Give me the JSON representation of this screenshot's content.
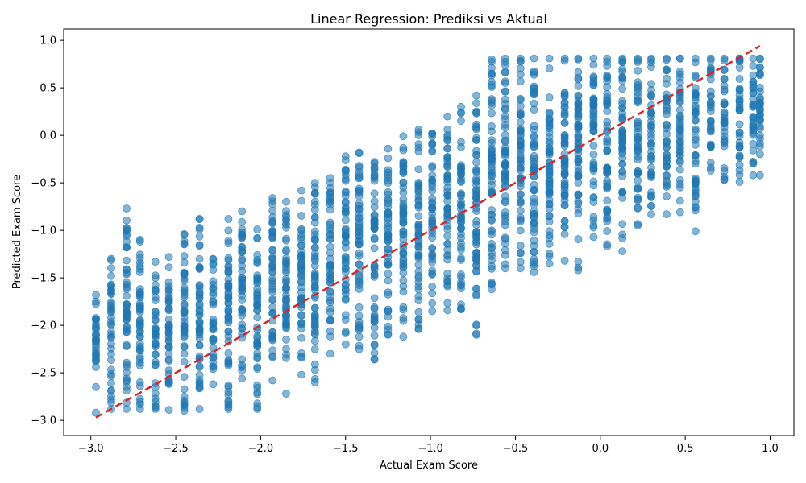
{
  "chart_data": {
    "type": "scatter",
    "title": "Linear Regression: Prediksi vs Aktual",
    "xlabel": "Actual Exam Score",
    "ylabel": "Predicted Exam Score",
    "xlim": [
      -3.16,
      1.14
    ],
    "ylim": [
      -3.16,
      1.12
    ],
    "x_ticks": [
      -3.0,
      -2.5,
      -2.0,
      -1.5,
      -1.0,
      -0.5,
      0.0,
      0.5,
      1.0
    ],
    "x_tick_labels": [
      "−3.0",
      "−2.5",
      "−2.0",
      "−1.5",
      "−1.0",
      "−0.5",
      "0.0",
      "0.5",
      "1.0"
    ],
    "y_ticks": [
      -3.0,
      -2.5,
      -2.0,
      -1.5,
      -1.0,
      -0.5,
      0.0,
      0.5,
      1.0
    ],
    "y_tick_labels": [
      "−3.0",
      "−2.5",
      "−2.0",
      "−1.5",
      "−1.0",
      "−0.5",
      "0.0",
      "0.5",
      "1.0"
    ],
    "grid": false,
    "point_color": "#1f77b4",
    "reference_line": {
      "style": "dashed",
      "color": "#d62728",
      "x": [
        -2.97,
        0.94
      ],
      "y": [
        -2.97,
        0.94
      ]
    },
    "actual_levels": [
      -2.97,
      -2.88,
      -2.79,
      -2.71,
      -2.62,
      -2.54,
      -2.45,
      -2.36,
      -2.28,
      -2.19,
      -2.11,
      -2.02,
      -1.93,
      -1.85,
      -1.76,
      -1.68,
      -1.59,
      -1.5,
      -1.42,
      -1.33,
      -1.25,
      -1.16,
      -1.07,
      -0.99,
      -0.9,
      -0.82,
      -0.73,
      -0.64,
      -0.56,
      -0.47,
      -0.39,
      -0.3,
      -0.21,
      -0.13,
      -0.04,
      0.04,
      0.13,
      0.22,
      0.3,
      0.39,
      0.47,
      0.56,
      0.65,
      0.73,
      0.82,
      0.9,
      0.94
    ],
    "predicted_bands": [
      [
        -2.92,
        -1.68
      ],
      [
        -2.88,
        -1.3
      ],
      [
        -2.88,
        -0.77
      ],
      [
        -2.88,
        -1.1
      ],
      [
        -2.88,
        -1.33
      ],
      [
        -2.89,
        -1.28
      ],
      [
        -2.9,
        -1.04
      ],
      [
        -2.88,
        -0.88
      ],
      [
        -2.62,
        -1.3
      ],
      [
        -2.88,
        -0.88
      ],
      [
        -2.56,
        -0.8
      ],
      [
        -2.88,
        -0.99
      ],
      [
        -2.58,
        -0.66
      ],
      [
        -2.72,
        -0.7
      ],
      [
        -2.52,
        -0.58
      ],
      [
        -2.6,
        -0.5
      ],
      [
        -2.3,
        -0.45
      ],
      [
        -2.2,
        -0.22
      ],
      [
        -2.25,
        -0.18
      ],
      [
        -2.36,
        -0.28
      ],
      [
        -2.1,
        -0.14
      ],
      [
        -2.12,
        -0.01
      ],
      [
        -2.04,
        0.06
      ],
      [
        -1.85,
        0.02
      ],
      [
        -1.84,
        0.2
      ],
      [
        -1.83,
        0.3
      ],
      [
        -2.1,
        0.42
      ],
      [
        -1.62,
        0.8
      ],
      [
        -1.4,
        0.81
      ],
      [
        -1.4,
        0.81
      ],
      [
        -1.44,
        0.81
      ],
      [
        -1.35,
        0.81
      ],
      [
        -1.32,
        0.81
      ],
      [
        -1.42,
        0.81
      ],
      [
        -1.07,
        0.81
      ],
      [
        -1.17,
        0.81
      ],
      [
        -1.22,
        0.81
      ],
      [
        -0.95,
        0.81
      ],
      [
        -0.83,
        0.81
      ],
      [
        -0.83,
        0.81
      ],
      [
        -0.81,
        0.81
      ],
      [
        -1.01,
        0.81
      ],
      [
        -0.37,
        0.81
      ],
      [
        -0.47,
        0.81
      ],
      [
        -0.49,
        0.81
      ],
      [
        -0.42,
        0.81
      ],
      [
        -0.42,
        0.81
      ]
    ]
  }
}
